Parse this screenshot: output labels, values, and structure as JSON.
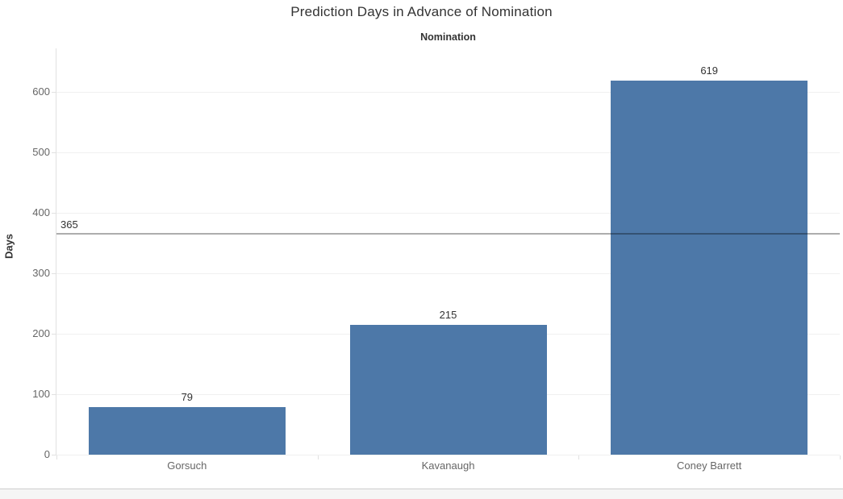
{
  "title": "Prediction Days in Advance of Nomination",
  "chart_data": {
    "type": "bar",
    "column_header": "Nomination",
    "categories": [
      "Gorsuch",
      "Kavanaugh",
      "Coney Barrett"
    ],
    "values": [
      79,
      215,
      619
    ],
    "value_labels": [
      "79",
      "215",
      "619"
    ],
    "ylabel": "Days",
    "xlabel": "",
    "yticks": [
      0,
      100,
      200,
      300,
      400,
      500,
      600
    ],
    "ylim": [
      0,
      672
    ],
    "reference_line": {
      "value": 365,
      "label": "365"
    },
    "grid": true,
    "legend": "none",
    "bar_color": "#4d78a8"
  },
  "colors": {
    "bar": "#4d78a8",
    "reference_line": "rgba(0,0,0,0.32)",
    "gridline": "#f0f0f0",
    "axis_line": "#e1e1e1",
    "tick_text": "#666666",
    "title_text": "#333333",
    "scrollbar_track": "#f5f5f5"
  }
}
